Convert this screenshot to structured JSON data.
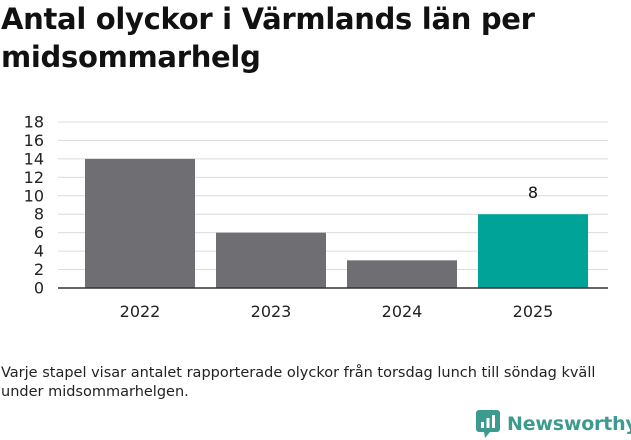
{
  "header": {
    "title": "Antal olyckor i Värmlands län per midsommarhelg"
  },
  "chart_data": {
    "type": "bar",
    "categories": [
      "2022",
      "2023",
      "2024",
      "2025"
    ],
    "values": [
      14,
      6,
      3,
      8
    ],
    "ylim": [
      0,
      18
    ],
    "yticks": [
      "0",
      "2",
      "4",
      "6",
      "8",
      "10",
      "12",
      "14",
      "16",
      "18"
    ],
    "grid": true,
    "highlight_index": 3,
    "data_labels": [
      "",
      "",
      "",
      "8"
    ],
    "colors": {
      "default_bar": "#6f6e73",
      "highlight_bar": "#00a398",
      "grid": "#dcdcdc",
      "axis": "#333333"
    }
  },
  "footer": {
    "note": "Varje stapel visar antalet rapporterade olyckor från torsdag lunch till söndag kväll under midsommarhelgen.",
    "brand": "Newsworthy",
    "brand_icon": "newsworthy-logo-icon",
    "brand_color": "#3d9a8e"
  }
}
